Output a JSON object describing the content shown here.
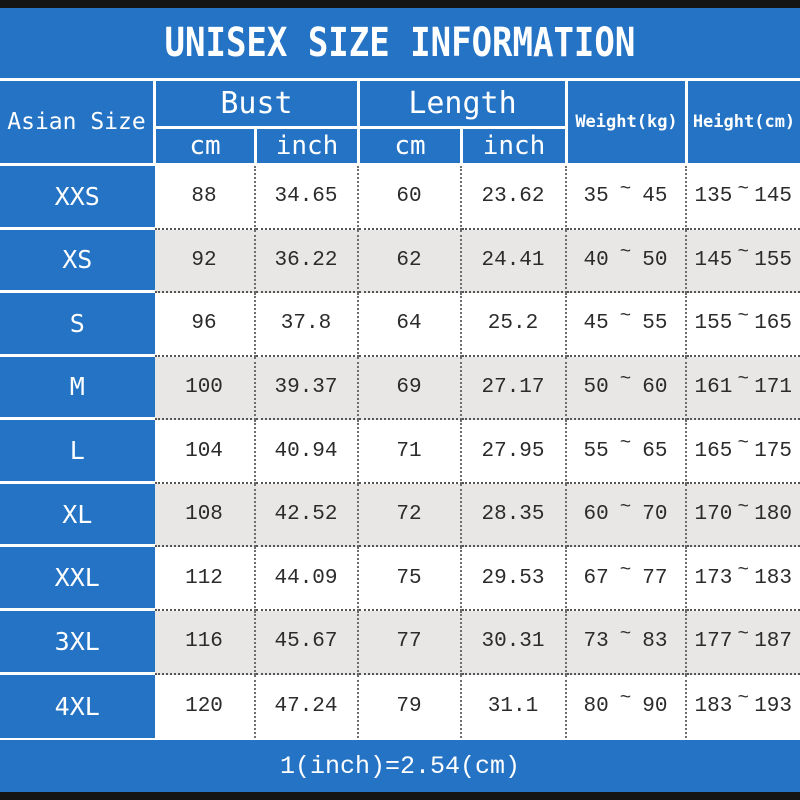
{
  "title": "UNISEX SIZE INFORMATION",
  "header": {
    "size_col": "Asian Size",
    "bust_label": "Bust",
    "length_label": "Length",
    "unit_cm": "cm",
    "unit_inch": "inch",
    "weight_label": "Weight(kg)",
    "height_label": "Height(cm)"
  },
  "tilde": "~",
  "rows": [
    {
      "size": "XXS",
      "bust_cm": "88",
      "bust_inch": "34.65",
      "length_cm": "60",
      "length_inch": "23.62",
      "weight_min": "35",
      "weight_max": "45",
      "height_min": "135",
      "height_max": "145"
    },
    {
      "size": "XS",
      "bust_cm": "92",
      "bust_inch": "36.22",
      "length_cm": "62",
      "length_inch": "24.41",
      "weight_min": "40",
      "weight_max": "50",
      "height_min": "145",
      "height_max": "155"
    },
    {
      "size": "S",
      "bust_cm": "96",
      "bust_inch": "37.8",
      "length_cm": "64",
      "length_inch": "25.2",
      "weight_min": "45",
      "weight_max": "55",
      "height_min": "155",
      "height_max": "165"
    },
    {
      "size": "M",
      "bust_cm": "100",
      "bust_inch": "39.37",
      "length_cm": "69",
      "length_inch": "27.17",
      "weight_min": "50",
      "weight_max": "60",
      "height_min": "161",
      "height_max": "171"
    },
    {
      "size": "L",
      "bust_cm": "104",
      "bust_inch": "40.94",
      "length_cm": "71",
      "length_inch": "27.95",
      "weight_min": "55",
      "weight_max": "65",
      "height_min": "165",
      "height_max": "175"
    },
    {
      "size": "XL",
      "bust_cm": "108",
      "bust_inch": "42.52",
      "length_cm": "72",
      "length_inch": "28.35",
      "weight_min": "60",
      "weight_max": "70",
      "height_min": "170",
      "height_max": "180"
    },
    {
      "size": "XXL",
      "bust_cm": "112",
      "bust_inch": "44.09",
      "length_cm": "75",
      "length_inch": "29.53",
      "weight_min": "67",
      "weight_max": "77",
      "height_min": "173",
      "height_max": "183"
    },
    {
      "size": "3XL",
      "bust_cm": "116",
      "bust_inch": "45.67",
      "length_cm": "77",
      "length_inch": "30.31",
      "weight_min": "73",
      "weight_max": "83",
      "height_min": "177",
      "height_max": "187"
    },
    {
      "size": "4XL",
      "bust_cm": "120",
      "bust_inch": "47.24",
      "length_cm": "79",
      "length_inch": "31.1",
      "weight_min": "80",
      "weight_max": "90",
      "height_min": "183",
      "height_max": "193"
    }
  ],
  "footer_note": "1(inch)=2.54(cm)",
  "colors": {
    "blue": "#2473c4",
    "row_alt_gray": "#e8e7e5",
    "frame_bar": "#141414",
    "data_text": "#2b2b2b",
    "header_text": "#ffffff"
  }
}
